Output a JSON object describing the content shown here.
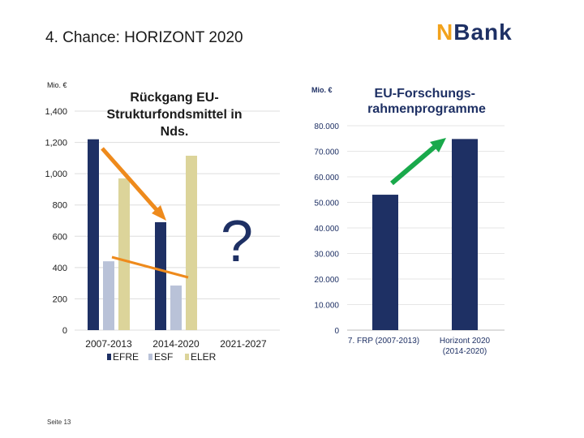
{
  "slide": {
    "title": "4. Chance: HORIZONT 2020",
    "logo": {
      "part1": "N",
      "part2": "Bank"
    },
    "footer": "Seite 13"
  },
  "colors": {
    "EFRE": "#1e3064",
    "ESF": "#b9c2d8",
    "ELER": "#dcd49a",
    "decline_arrow": "#ee8a1c",
    "growth_arrow": "#19a94b",
    "question_mark": "#1e3064"
  },
  "chart_data": [
    {
      "type": "bar",
      "title": "Rückgang EU-Strukturfondsmittel in Nds.",
      "unit_label": "Mio. €",
      "categories": [
        "2007-2013",
        "2014-2020",
        "2021-2027"
      ],
      "series": [
        {
          "name": "EFRE",
          "values": [
            1220,
            690,
            null
          ]
        },
        {
          "name": "ESF",
          "values": [
            440,
            285,
            null
          ]
        },
        {
          "name": "ELER",
          "values": [
            970,
            1115,
            null
          ]
        }
      ],
      "ylim": [
        0,
        1400
      ],
      "yticks": [
        "0",
        "200",
        "400",
        "600",
        "800",
        "1,000",
        "1,200",
        "1,400"
      ],
      "annotation": "?",
      "legend": "bottom"
    },
    {
      "type": "bar",
      "title": "EU-Forschungs-rahmenprogramme",
      "unit_label": "Mio. €",
      "categories": [
        "7. FRP (2007-2013)",
        "Horizont 2020 (2014-2020)"
      ],
      "values": [
        53000,
        74800
      ],
      "ylim": [
        0,
        80000
      ],
      "yticks": [
        "0",
        "10.000",
        "20.000",
        "30.000",
        "40.000",
        "50.000",
        "60.000",
        "70.000",
        "80.000"
      ]
    }
  ]
}
